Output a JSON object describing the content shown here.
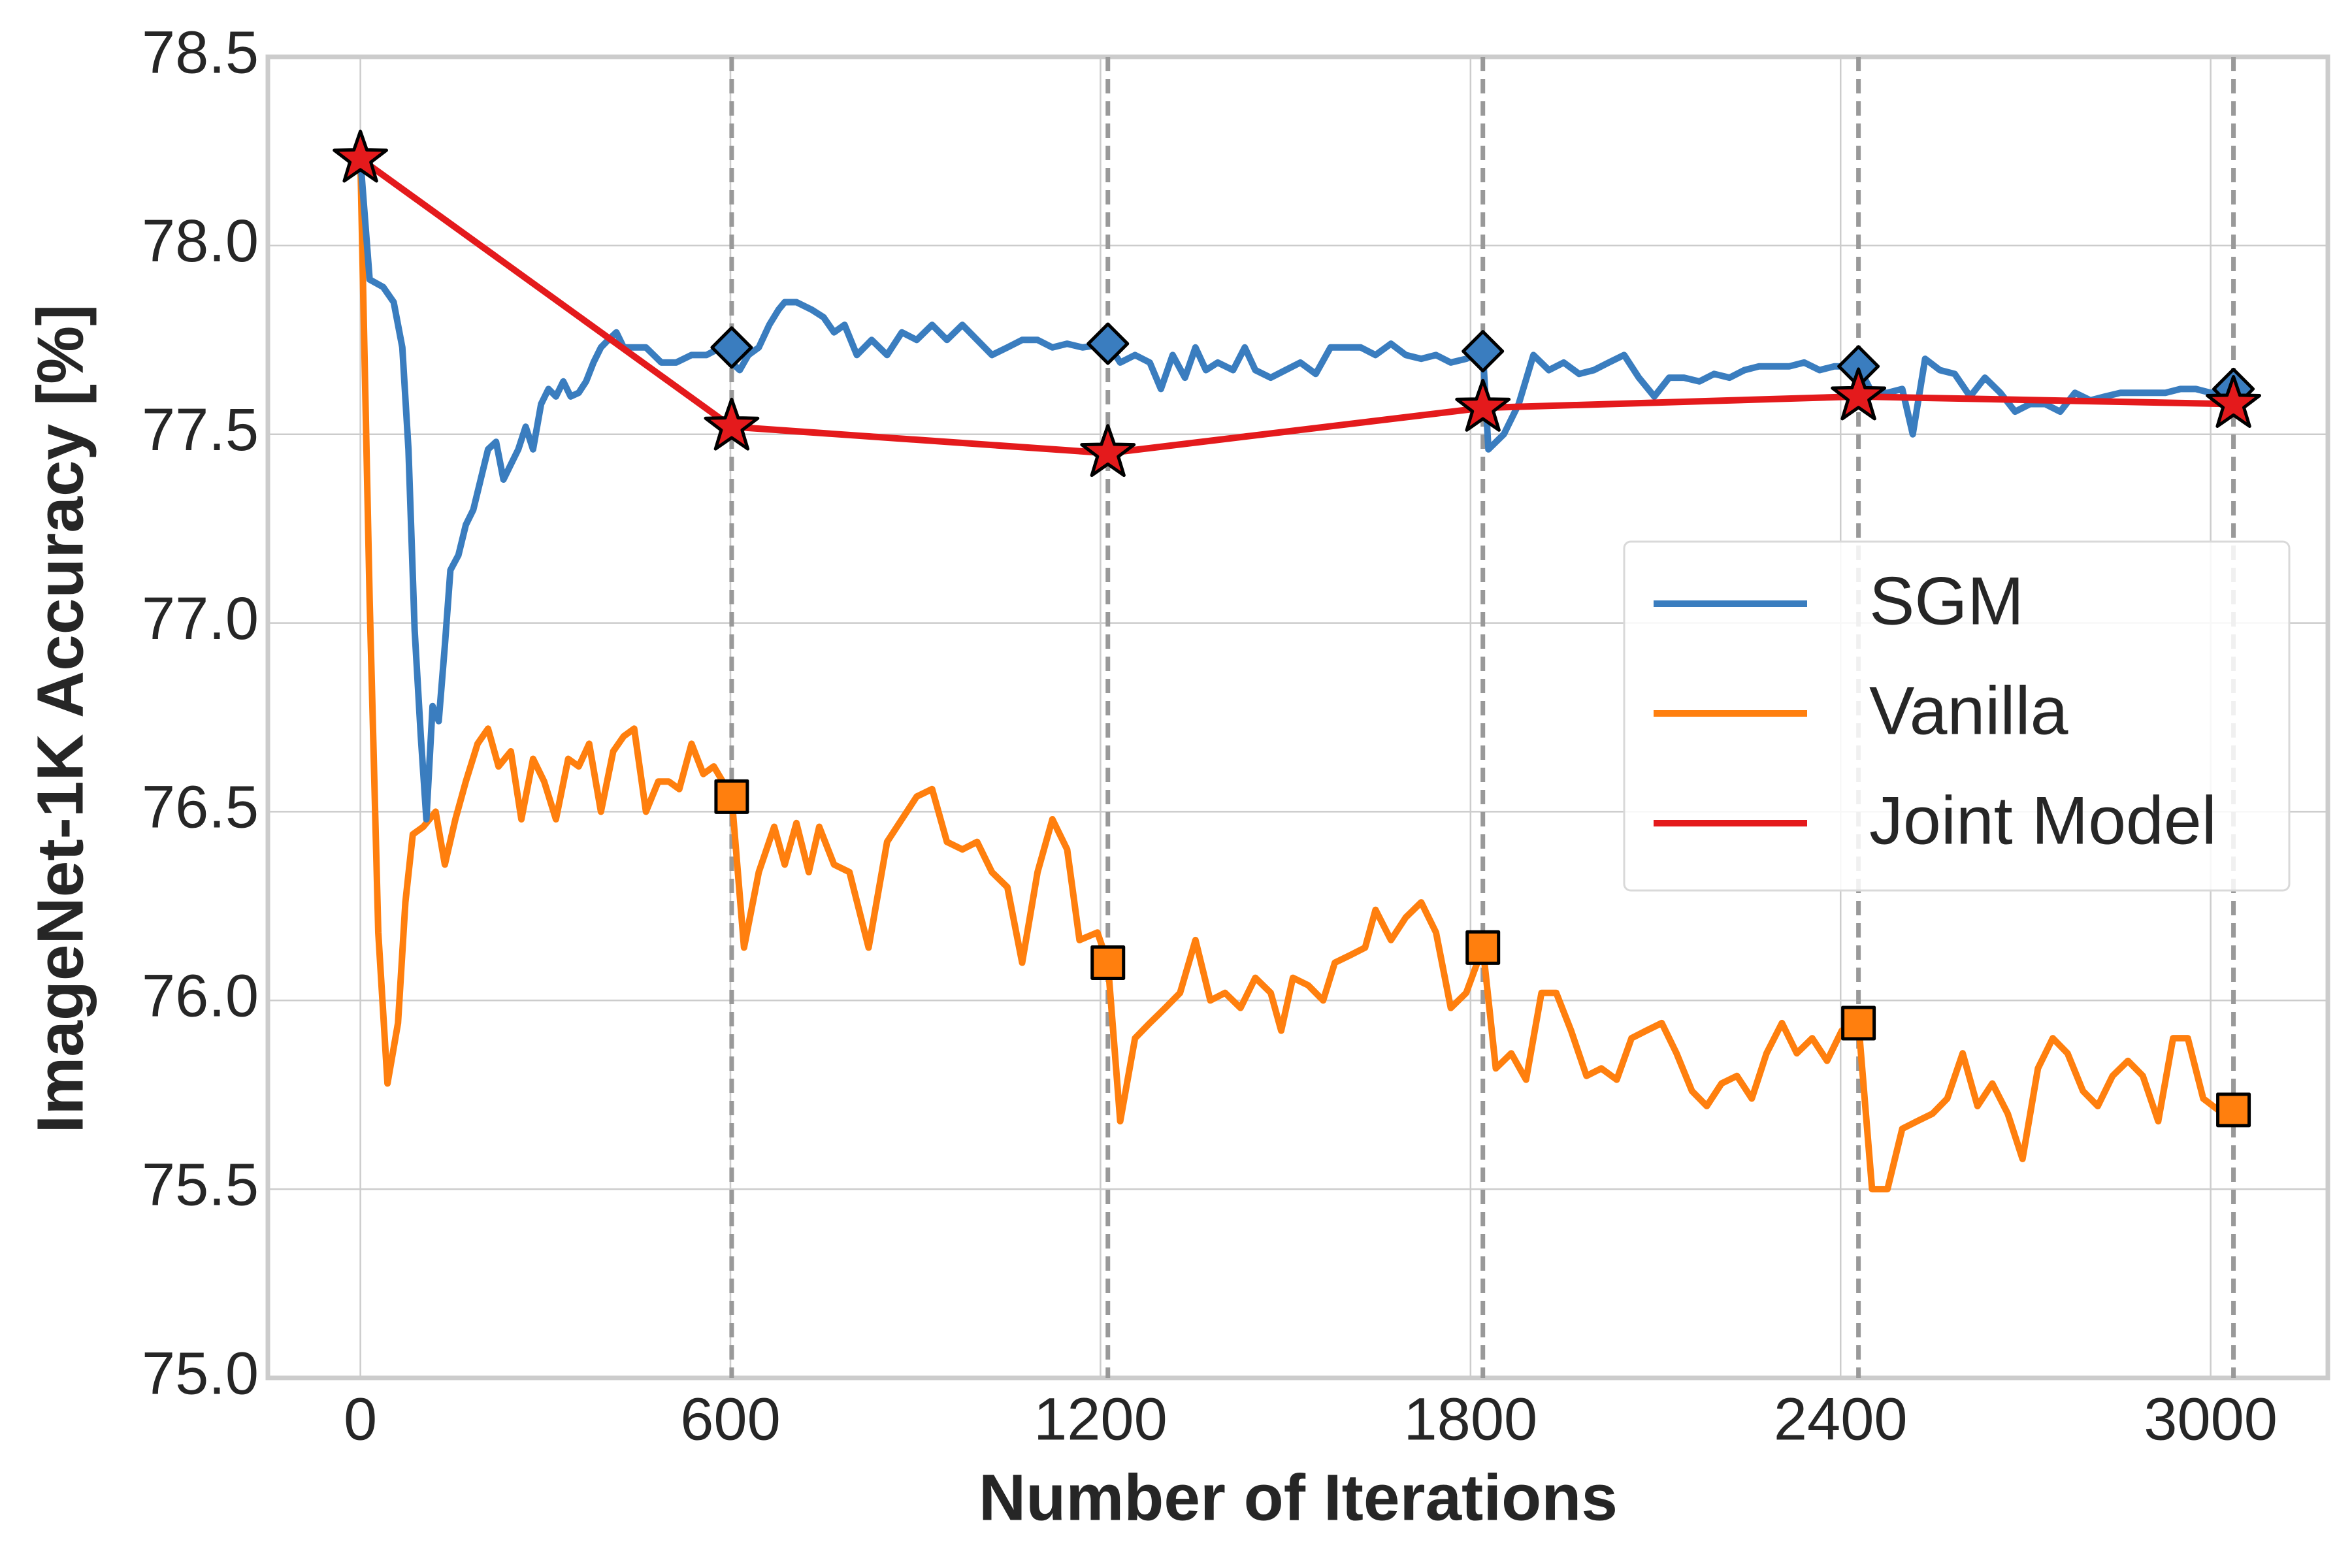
{
  "chart_data": {
    "type": "line",
    "xlabel": "Number of Iterations",
    "ylabel": "ImageNet-1K  Accuracy [%]",
    "xlim": [
      -150,
      3190
    ],
    "ylim": [
      75.0,
      78.5
    ],
    "xticks": [
      0,
      600,
      1200,
      1800,
      2400,
      3000
    ],
    "yticks": [
      {
        "value": 75.0,
        "label": "75.0"
      },
      75.5,
      {
        "value": 76.0,
        "label": "76.0"
      },
      76.5,
      {
        "value": 77.0,
        "label": "77.0"
      },
      77.5,
      {
        "value": 78.0,
        "label": "78.0"
      },
      78.5
    ],
    "grid": true,
    "vlines": [
      602,
      1212,
      1820,
      2429,
      3037
    ],
    "vline_color": "#999999",
    "legend": "right",
    "series": [
      {
        "name": "SGM",
        "color": "#3a7dbf",
        "marker": "diamond",
        "x": [
          0,
          15,
          37,
          54,
          68,
          78,
          88,
          98,
          107,
          117,
          127,
          137,
          146,
          159,
          171,
          183,
          195,
          207,
          220,
          232,
          244,
          256,
          268,
          280,
          293,
          305,
          317,
          329,
          341,
          354,
          366,
          378,
          390,
          402,
          415,
          427,
          439,
          463,
          488,
          512,
          537,
          561,
          585,
          602,
          615,
          629,
          646,
          663,
          678,
          688,
          707,
          732,
          751,
          768,
          785,
          805,
          829,
          854,
          878,
          902,
          927,
          951,
          976,
          1000,
          1024,
          1049,
          1073,
          1098,
          1122,
          1146,
          1171,
          1212,
          1232,
          1256,
          1280,
          1298,
          1317,
          1337,
          1354,
          1371,
          1390,
          1415,
          1434,
          1451,
          1476,
          1500,
          1524,
          1549,
          1573,
          1598,
          1622,
          1646,
          1671,
          1695,
          1720,
          1744,
          1768,
          1793,
          1820,
          1829,
          1854,
          1878,
          1902,
          1927,
          1951,
          1976,
          2000,
          2024,
          2049,
          2073,
          2098,
          2122,
          2146,
          2171,
          2195,
          2220,
          2244,
          2268,
          2293,
          2317,
          2341,
          2366,
          2390,
          2429,
          2451,
          2476,
          2500,
          2517,
          2537,
          2561,
          2585,
          2610,
          2634,
          2659,
          2683,
          2707,
          2732,
          2756,
          2780,
          2805,
          2829,
          2854,
          2878,
          2902,
          2927,
          2951,
          2976,
          3000,
          3037
        ],
        "values": [
          78.23,
          77.91,
          77.89,
          77.85,
          77.73,
          77.46,
          76.98,
          76.7,
          76.48,
          76.78,
          76.74,
          76.94,
          77.14,
          77.18,
          77.26,
          77.3,
          77.38,
          77.46,
          77.48,
          77.38,
          77.42,
          77.46,
          77.52,
          77.46,
          77.58,
          77.62,
          77.6,
          77.64,
          77.6,
          77.61,
          77.64,
          77.69,
          77.73,
          77.75,
          77.77,
          77.73,
          77.73,
          77.73,
          77.69,
          77.69,
          77.71,
          77.71,
          77.73,
          77.69,
          77.67,
          77.71,
          77.73,
          77.79,
          77.83,
          77.85,
          77.85,
          77.83,
          77.81,
          77.77,
          77.79,
          77.71,
          77.75,
          77.71,
          77.77,
          77.75,
          77.79,
          77.75,
          77.79,
          77.75,
          77.71,
          77.73,
          77.75,
          77.75,
          77.73,
          77.74,
          77.73,
          77.74,
          77.69,
          77.71,
          77.69,
          77.62,
          77.71,
          77.65,
          77.73,
          77.67,
          77.69,
          77.67,
          77.73,
          77.67,
          77.65,
          77.67,
          77.69,
          77.66,
          77.73,
          77.73,
          77.73,
          77.71,
          77.74,
          77.71,
          77.7,
          77.71,
          77.69,
          77.7,
          77.72,
          77.46,
          77.5,
          77.58,
          77.71,
          77.67,
          77.69,
          77.66,
          77.67,
          77.69,
          77.71,
          77.65,
          77.6,
          77.65,
          77.65,
          77.64,
          77.66,
          77.65,
          77.67,
          77.68,
          77.68,
          77.68,
          77.69,
          77.67,
          77.68,
          77.68,
          77.61,
          77.61,
          77.62,
          77.5,
          77.7,
          77.67,
          77.66,
          77.6,
          77.65,
          77.61,
          77.56,
          77.58,
          77.58,
          77.56,
          77.61,
          77.59,
          77.6,
          77.61,
          77.61,
          77.61,
          77.61,
          77.62,
          77.62,
          77.61,
          77.62
        ],
        "marker_x": [
          602,
          1212,
          1820,
          2429,
          3037
        ],
        "marker_values": [
          77.73,
          77.74,
          77.72,
          77.68,
          77.62
        ]
      },
      {
        "name": "Vanilla",
        "color": "#ff7f0e",
        "marker": "square",
        "x": [
          0,
          15,
          29,
          44,
          61,
          73,
          85,
          102,
          122,
          137,
          154,
          171,
          190,
          207,
          224,
          244,
          261,
          280,
          298,
          317,
          337,
          354,
          371,
          390,
          410,
          427,
          444,
          463,
          483,
          500,
          517,
          537,
          556,
          573,
          602,
          622,
          646,
          671,
          688,
          707,
          727,
          744,
          768,
          793,
          824,
          854,
          878,
          902,
          927,
          951,
          976,
          1000,
          1024,
          1049,
          1073,
          1098,
          1122,
          1146,
          1166,
          1195,
          1212,
          1232,
          1256,
          1280,
          1305,
          1329,
          1354,
          1378,
          1402,
          1427,
          1451,
          1476,
          1493,
          1512,
          1537,
          1561,
          1580,
          1605,
          1629,
          1646,
          1671,
          1695,
          1720,
          1744,
          1768,
          1793,
          1820,
          1841,
          1866,
          1890,
          1915,
          1939,
          1963,
          1988,
          2012,
          2037,
          2061,
          2085,
          2110,
          2134,
          2159,
          2183,
          2207,
          2232,
          2256,
          2280,
          2305,
          2329,
          2354,
          2378,
          2402,
          2429,
          2451,
          2476,
          2500,
          2524,
          2549,
          2573,
          2598,
          2622,
          2646,
          2671,
          2695,
          2720,
          2744,
          2768,
          2793,
          2817,
          2841,
          2866,
          2890,
          2915,
          2939,
          2963,
          2988,
          3012
        ],
        "values": [
          78.23,
          77.06,
          76.18,
          75.78,
          75.94,
          76.26,
          76.44,
          76.46,
          76.5,
          76.36,
          76.48,
          76.58,
          76.68,
          76.72,
          76.62,
          76.66,
          76.48,
          76.64,
          76.58,
          76.48,
          76.64,
          76.62,
          76.68,
          76.5,
          76.66,
          76.7,
          76.72,
          76.5,
          76.58,
          76.58,
          76.56,
          76.68,
          76.6,
          76.62,
          76.54,
          76.14,
          76.34,
          76.46,
          76.36,
          76.47,
          76.34,
          76.46,
          76.36,
          76.34,
          76.14,
          76.42,
          76.48,
          76.54,
          76.56,
          76.42,
          76.4,
          76.42,
          76.34,
          76.3,
          76.1,
          76.34,
          76.48,
          76.4,
          76.16,
          76.18,
          76.1,
          75.68,
          75.9,
          75.94,
          75.98,
          76.02,
          76.16,
          76.0,
          76.02,
          75.98,
          76.06,
          76.02,
          75.92,
          76.06,
          76.04,
          76.0,
          76.1,
          76.12,
          76.14,
          76.24,
          76.16,
          76.22,
          76.26,
          76.18,
          75.98,
          76.02,
          76.14,
          75.82,
          75.86,
          75.79,
          76.02,
          76.02,
          75.92,
          75.8,
          75.82,
          75.79,
          75.9,
          75.92,
          75.94,
          75.86,
          75.76,
          75.72,
          75.78,
          75.8,
          75.74,
          75.86,
          75.94,
          75.86,
          75.9,
          75.84,
          75.92,
          75.94,
          75.5,
          75.5,
          75.66,
          75.68,
          75.7,
          75.74,
          75.86,
          75.72,
          75.78,
          75.7,
          75.58,
          75.82,
          75.9,
          75.86,
          75.76,
          75.72,
          75.8,
          75.84,
          75.8,
          75.68,
          75.9,
          75.9,
          75.74,
          75.71
        ],
        "marker_x": [
          602,
          1212,
          1820,
          2429,
          3037
        ],
        "marker_values": [
          76.54,
          76.1,
          76.14,
          75.94,
          75.71
        ]
      },
      {
        "name": "Joint Model",
        "color": "#e41a1c",
        "marker": "star",
        "x": [
          0,
          602,
          1212,
          1820,
          2429,
          3037
        ],
        "values": [
          78.23,
          77.52,
          77.45,
          77.57,
          77.6,
          77.58
        ],
        "marker_x": [
          0,
          602,
          1212,
          1820,
          2429,
          3037
        ],
        "marker_values": [
          78.23,
          77.52,
          77.45,
          77.57,
          77.6,
          77.58
        ]
      }
    ]
  }
}
